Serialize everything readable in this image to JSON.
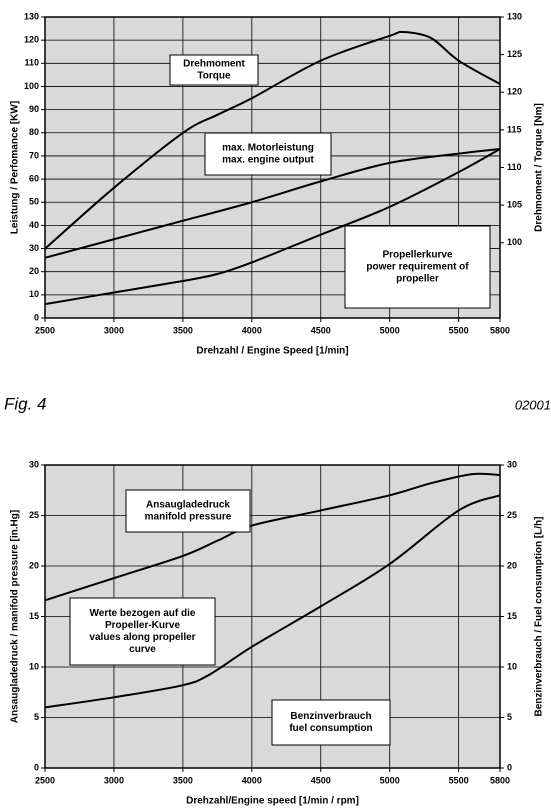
{
  "chart_data": [
    {
      "type": "line",
      "xlabel": "Drehzahl / Engine Speed [1/min]",
      "ylabel": "Leistung / Perfomance [KW]",
      "y2label": "Drehmoment / Torque [Nm]",
      "xlim": [
        2500,
        5800
      ],
      "xticks": [
        2500,
        3000,
        3500,
        4000,
        4500,
        5000,
        5500,
        5800
      ],
      "ylim": [
        0,
        130
      ],
      "yticks": [
        0,
        10,
        20,
        30,
        40,
        50,
        60,
        70,
        80,
        90,
        100,
        110,
        120,
        130
      ],
      "y2lim": [
        90,
        130
      ],
      "y2ticks": [
        100,
        105,
        110,
        115,
        120,
        125,
        130
      ],
      "grid": true,
      "background": "#d9d9d9",
      "series": [
        {
          "color": "#000000",
          "axis": "y2",
          "x": [
            2500,
            3000,
            3500,
            3750,
            4000,
            4500,
            5000,
            5100,
            5300,
            5500,
            5800
          ],
          "values": [
            99.2,
            107.3,
            114.6,
            117,
            119.2,
            124.2,
            127.5,
            128,
            127.2,
            124.2,
            121.1
          ]
        },
        {
          "color": "#000000",
          "x": [
            2500,
            3000,
            3500,
            4000,
            4500,
            5000,
            5500,
            5800
          ],
          "values": [
            26,
            34,
            42,
            50,
            59,
            67,
            71,
            73
          ]
        },
        {
          "color": "#000000",
          "x": [
            2500,
            3000,
            3500,
            3750,
            4000,
            4500,
            5000,
            5500,
            5800
          ],
          "values": [
            6,
            11,
            16,
            19,
            24,
            36,
            48,
            63,
            73
          ]
        }
      ],
      "annotations": [
        {
          "lines": [
            "Drehmoment",
            "Torque"
          ]
        },
        {
          "lines": [
            "max. Motorleistung",
            "max. engine output"
          ]
        },
        {
          "lines": [
            "Propellerkurve",
            "power requirement of",
            "propeller"
          ]
        }
      ]
    },
    {
      "type": "line",
      "xlabel": "Drehzahl/Engine speed [1/min / rpm]",
      "ylabel": "Ansaugladedruck / manifold pressure [in.Hg]",
      "y2label": "Benzinverbrauch / Fuel consumption [L/h]",
      "xlim": [
        2500,
        5800
      ],
      "xticks": [
        2500,
        3000,
        3500,
        4000,
        4500,
        5000,
        5500,
        5800
      ],
      "ylim": [
        0,
        30
      ],
      "yticks": [
        0,
        5,
        10,
        15,
        20,
        25,
        30
      ],
      "y2lim": [
        0,
        30
      ],
      "y2ticks": [
        0,
        5,
        10,
        15,
        20,
        25,
        30
      ],
      "grid": true,
      "background": "#d9d9d9",
      "series": [
        {
          "color": "#000000",
          "x": [
            2500,
            3000,
            3500,
            3750,
            4000,
            4500,
            5000,
            5300,
            5600,
            5800
          ],
          "values": [
            16.6,
            18.8,
            21,
            22.5,
            24,
            25.5,
            27,
            28.2,
            29.1,
            29
          ]
        },
        {
          "color": "#000000",
          "axis": "y2",
          "x": [
            2500,
            3000,
            3500,
            3700,
            4000,
            4500,
            5000,
            5500,
            5800
          ],
          "values": [
            6,
            7,
            8.2,
            9.3,
            12,
            16,
            20.2,
            25.5,
            27
          ]
        }
      ],
      "annotations": [
        {
          "lines": [
            "Ansaugladedruck",
            "manifold pressure"
          ]
        },
        {
          "lines": [
            "Werte bezogen auf die",
            "Propeller-Kurve",
            "values along propeller",
            "curve"
          ]
        },
        {
          "lines": [
            "Benzinverbrauch",
            "fuel consumption"
          ]
        }
      ]
    }
  ],
  "figure_label": "Fig. 4",
  "doc_number": "02001"
}
